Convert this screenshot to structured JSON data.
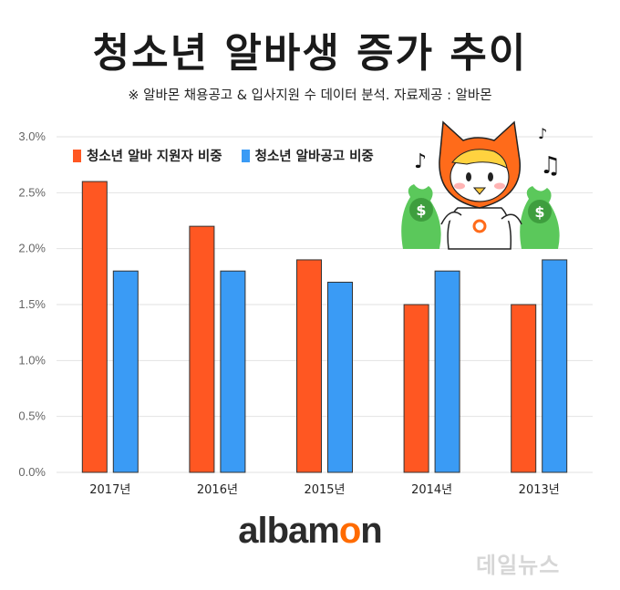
{
  "title": "청소년 알바생 증가 추이",
  "subtitle": "※ 알바몬 채용공고 & 입사지원 수 데이터 분석. 자료제공 : 알바몬",
  "logo": {
    "text_before": "albam",
    "accent": "o",
    "text_after": "n"
  },
  "watermark": "데일뉴스",
  "colors": {
    "orange": "#FF5722",
    "blue": "#3A9BF5",
    "mascot_orange": "#FF6B1A",
    "money_green": "#5BC85B"
  },
  "icons": [
    "mascot-character-icon",
    "money-bag-icon",
    "music-note-icon"
  ],
  "chart_data": {
    "type": "bar",
    "categories": [
      "2017년",
      "2016년",
      "2015년",
      "2014년",
      "2013년"
    ],
    "series": [
      {
        "name": "청소년 알바 지원자 비중",
        "color": "#FF5722",
        "values": [
          2.6,
          2.2,
          1.9,
          1.5,
          1.5
        ]
      },
      {
        "name": "청소년 알바공고 비중",
        "color": "#3A9BF5",
        "values": [
          1.8,
          1.8,
          1.7,
          1.8,
          1.9
        ]
      }
    ],
    "yticks": [
      "0.0%",
      "0.5%",
      "1.0%",
      "1.5%",
      "2.0%",
      "2.5%",
      "3.0%"
    ],
    "ylim": [
      0,
      3.0
    ],
    "grid": true,
    "legend_position": "top-left"
  }
}
